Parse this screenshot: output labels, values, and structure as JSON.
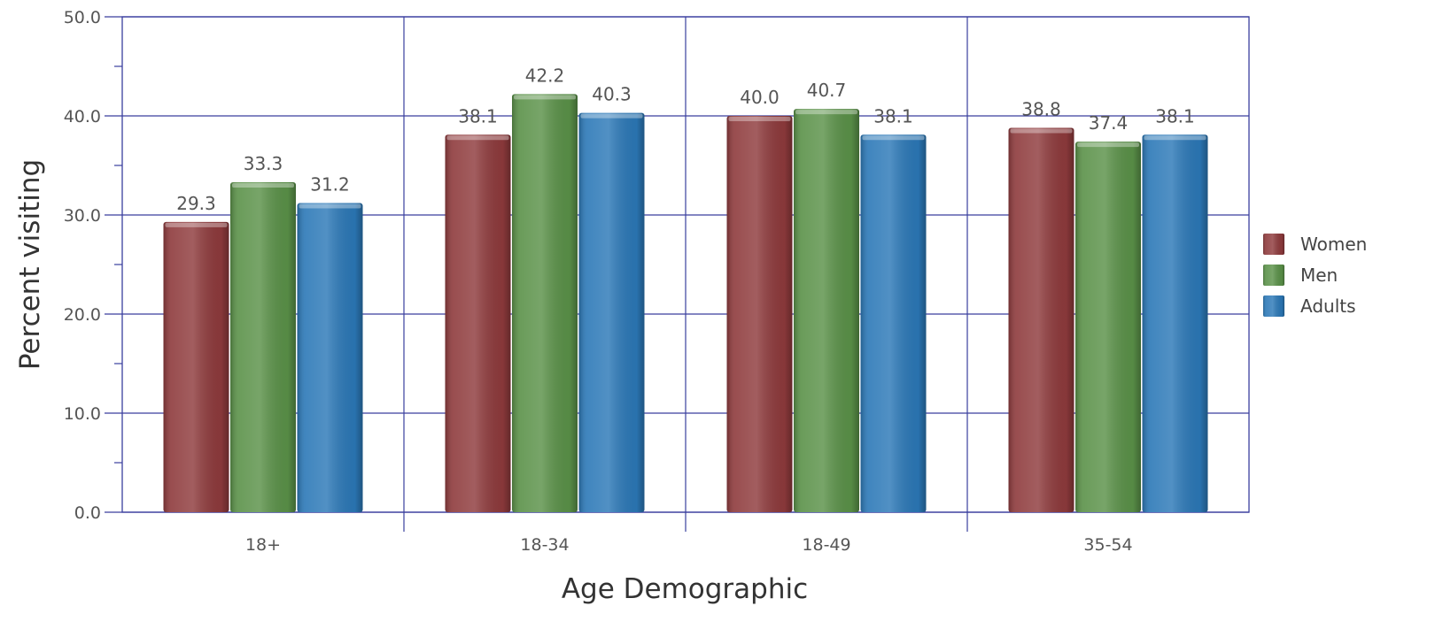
{
  "chart_data": {
    "type": "bar",
    "categories": [
      "18+",
      "18-34",
      "18-49",
      "35-54"
    ],
    "series": [
      {
        "name": "Women",
        "values": [
          29.3,
          38.1,
          40.0,
          38.8
        ],
        "color": "#8e3a3c"
      },
      {
        "name": "Men",
        "values": [
          33.3,
          42.2,
          40.7,
          37.4
        ],
        "color": "#5a9148"
      },
      {
        "name": "Adults",
        "values": [
          31.2,
          40.3,
          38.1,
          38.1
        ],
        "color": "#2b78b7"
      }
    ],
    "title": "",
    "xlabel": "Age Demographic",
    "ylabel": "Percent visiting",
    "ylim": [
      0,
      50
    ],
    "yticks": [
      "0.0",
      "10.0",
      "20.0",
      "30.0",
      "40.0",
      "50.0"
    ],
    "value_format_decimals": 1,
    "grid": true,
    "legend_position": "right",
    "colors": {
      "grid": "#3a3f9e",
      "axis": "#3a3f9e"
    }
  }
}
